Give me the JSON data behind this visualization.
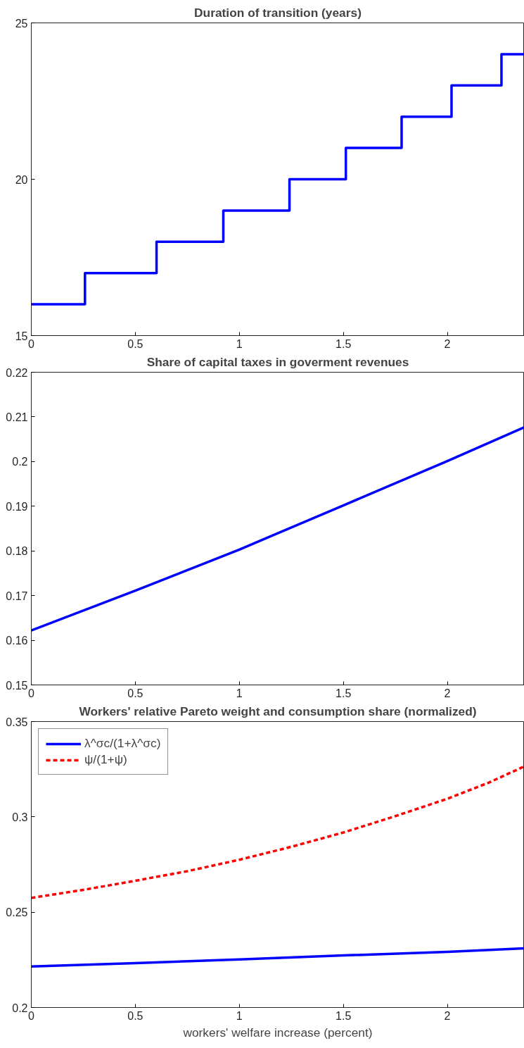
{
  "chart_data": [
    {
      "type": "step",
      "title": "Duration of transition (years)",
      "xlim": [
        0,
        2.37
      ],
      "xticks": [
        0,
        0.5,
        1,
        1.5,
        2
      ],
      "ylim": [
        15,
        25
      ],
      "yticks": [
        15,
        20,
        25
      ],
      "grid": false,
      "legend": false,
      "series": [
        {
          "color": "#0000ff",
          "x": [
            0,
            0.258,
            0.602,
            0.923,
            1.241,
            1.512,
            1.78,
            2.02,
            2.26,
            2.37
          ],
          "values": [
            16,
            17,
            18,
            19,
            20,
            21,
            22,
            23,
            24,
            24
          ]
        }
      ]
    },
    {
      "type": "line",
      "title": "Share of capital taxes in goverment revenues",
      "xlim": [
        0,
        2.37
      ],
      "xticks": [
        0,
        0.5,
        1,
        1.5,
        2
      ],
      "ylim": [
        0.15,
        0.22
      ],
      "yticks": [
        0.15,
        0.16,
        0.17,
        0.18,
        0.19,
        0.2,
        0.21,
        0.22
      ],
      "grid": false,
      "legend": false,
      "series": [
        {
          "color": "#0000ff",
          "x": [
            0,
            0.5,
            1,
            1.5,
            2,
            2.37
          ],
          "values": [
            0.1622,
            0.1711,
            0.1803,
            0.1902,
            0.2001,
            0.2077
          ]
        }
      ]
    },
    {
      "type": "line",
      "title": "Workers' relative Pareto weight and consumption share (normalized)",
      "xlabel": "workers' welfare increase (percent)",
      "xlim": [
        0,
        2.37
      ],
      "xticks": [
        0,
        0.5,
        1,
        1.5,
        2
      ],
      "ylim": [
        0.2,
        0.35
      ],
      "yticks": [
        0.2,
        0.25,
        0.3,
        0.35
      ],
      "grid": false,
      "legend": "top left",
      "series": [
        {
          "name": "λ^σc/(1+λ^σc)",
          "color": "#0000ff",
          "line_style": "solid",
          "x": [
            0,
            0.5,
            1,
            1.5,
            2,
            2.37
          ],
          "values": [
            0.2215,
            0.2233,
            0.2252,
            0.2273,
            0.2292,
            0.231
          ]
        },
        {
          "name": "ψ/(1+ψ)",
          "color": "#ff0000",
          "line_style": "dashed",
          "x": [
            0,
            0.25,
            0.5,
            0.75,
            1,
            1.25,
            1.5,
            1.75,
            2,
            2.2,
            2.37
          ],
          "values": [
            0.2575,
            0.2617,
            0.2665,
            0.2715,
            0.2775,
            0.2843,
            0.2918,
            0.3004,
            0.3095,
            0.318,
            0.3265
          ]
        }
      ]
    }
  ]
}
